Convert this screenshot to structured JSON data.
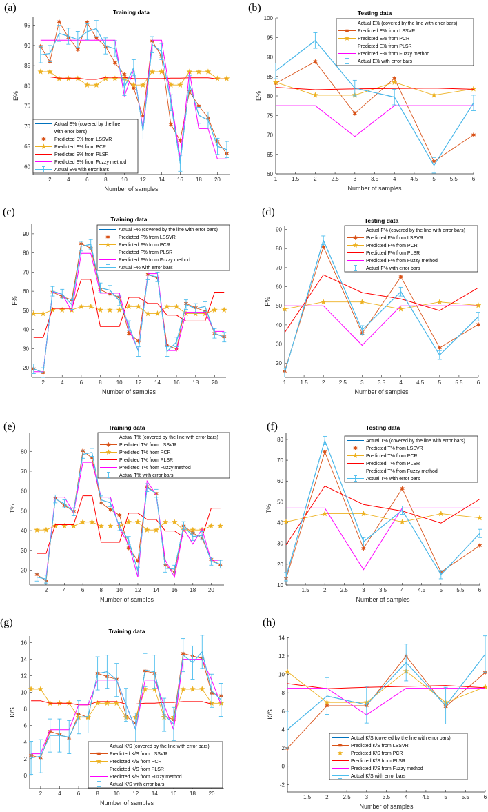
{
  "chart_data": [
    {
      "type": "line",
      "panel_label": "(a)",
      "title": "Training data",
      "xlabel": "Number of samples",
      "ylabel": "E%",
      "xlim": [
        0.2,
        21.3
      ],
      "ylim": [
        58,
        97
      ],
      "xticks": [
        2,
        4,
        6,
        8,
        10,
        12,
        14,
        16,
        18,
        20
      ],
      "yticks": [
        60,
        65,
        70,
        75,
        80,
        85,
        90,
        95
      ],
      "legend_position": "bottom-left",
      "legend": [
        [
          "Actual E% (covered by the line",
          "with error bars)"
        ],
        [
          "Predicted E% from LSSVR"
        ],
        [
          "Predicted E% from PCR"
        ],
        [
          "Predicted E% from PLSR"
        ],
        [
          "Predicted E% from Fuzzy method"
        ],
        [
          "Actual E% with error bars"
        ]
      ],
      "x": [
        1,
        2,
        3,
        4,
        5,
        6,
        7,
        8,
        9,
        10,
        11,
        12,
        13,
        14,
        15,
        16,
        17,
        18,
        19,
        20,
        21
      ],
      "actual": [
        87.7,
        88,
        93,
        92.3,
        91.5,
        93.4,
        94.2,
        89.9,
        89.2,
        79.6,
        84.5,
        68.8,
        90.2,
        88.5,
        75.8,
        60.8,
        80.5,
        72.7,
        71.5,
        65,
        64.2
      ],
      "error": 2,
      "lssvr": [
        89.8,
        86,
        95.9,
        92,
        89,
        95.7,
        91.8,
        89.7,
        85.7,
        82.8,
        79.4,
        72.5,
        91.1,
        87.3,
        70.4,
        66.4,
        78.6,
        75,
        72.1,
        66.2,
        63.2
      ],
      "pcr": [
        83.5,
        83.5,
        81.8,
        81.8,
        81.8,
        80.2,
        80.2,
        81.8,
        81.8,
        81.8,
        80.2,
        80.2,
        83.5,
        83.5,
        80.2,
        80.2,
        83.5,
        83.5,
        83.5,
        81.8,
        81.8
      ],
      "plsr": [
        82.2,
        82.2,
        81.9,
        81.9,
        81.9,
        81.6,
        81.6,
        82.1,
        82.1,
        82.1,
        81.8,
        81.8,
        81.8,
        81.8,
        81.9,
        81.9,
        82,
        82,
        82,
        81.7,
        81.7
      ],
      "fuzzy": [
        91.3,
        91.3,
        91.3,
        91.3,
        91.3,
        91.3,
        91.3,
        91.3,
        91.3,
        77.4,
        84,
        69.5,
        91.3,
        91.3,
        77,
        62,
        83.5,
        69.4,
        69.4,
        61.9,
        61.9
      ]
    },
    {
      "type": "line",
      "panel_label": "(b)",
      "title": "Testing data",
      "xlabel": "Number of samples",
      "ylabel": "E%",
      "xlim": [
        1,
        6
      ],
      "ylim": [
        60,
        100
      ],
      "xticks": [
        1,
        1.5,
        2,
        2.5,
        3,
        3.5,
        4,
        4.5,
        5,
        5.5,
        6
      ],
      "yticks": [
        60,
        65,
        70,
        75,
        80,
        85,
        90,
        95,
        100
      ],
      "legend_position": "top-right",
      "legend": [
        [
          "Actual E% (covered by the line with error bars)"
        ],
        [
          "Predicted E% from LSSVR"
        ],
        [
          "Predicted E% from PCR"
        ],
        [
          "Predicted E% from PLSR"
        ],
        [
          "Predicted E% from Fuzzy method"
        ],
        [
          "Actual E% with error bars"
        ]
      ],
      "x": [
        1,
        2,
        3,
        4,
        5,
        6
      ],
      "actual": [
        86.4,
        94.2,
        82,
        79.7,
        62.2,
        78.2
      ],
      "error": 2,
      "lssvr": [
        83.2,
        88.8,
        75.5,
        84.5,
        63.2,
        70
      ],
      "pcr": [
        83.5,
        80.2,
        80.2,
        83.5,
        80.2,
        81.8
      ],
      "plsr": [
        82.2,
        81.6,
        81.8,
        81.9,
        82,
        81.7
      ],
      "fuzzy": [
        77.5,
        77.5,
        69.6,
        77.5,
        77.5,
        77.5
      ]
    },
    {
      "type": "line",
      "panel_label": "(c)",
      "title": "Training data",
      "xlabel": "Number of samples",
      "ylabel": "F%",
      "xlim": [
        0.8,
        21.2
      ],
      "ylim": [
        15,
        95
      ],
      "xticks": [
        2,
        4,
        6,
        8,
        10,
        12,
        14,
        16,
        18,
        20
      ],
      "yticks": [
        20,
        30,
        40,
        50,
        60,
        70,
        80,
        90
      ],
      "legend_position": "top-right",
      "legend": [
        [
          "Actual F% (covered by the line with error bars)"
        ],
        [
          "Predicted F% from LSSVR"
        ],
        [
          "Predicted F% from PCR"
        ],
        [
          "Predicted F% from PLSR"
        ],
        [
          "Predicted F% from Fuzzy method"
        ],
        [
          "Actual F% with error bars"
        ]
      ],
      "x": [
        1,
        2,
        3,
        4,
        5,
        6,
        7,
        8,
        9,
        10,
        11,
        12,
        13,
        14,
        15,
        16,
        17,
        18,
        19,
        20,
        21
      ],
      "actual": [
        19.5,
        17.5,
        60,
        58.5,
        53,
        83.5,
        84.5,
        61.8,
        60.5,
        55,
        42,
        28.5,
        68.5,
        67.5,
        28.5,
        33.5,
        53,
        51,
        52,
        38,
        36
      ],
      "error": 2.5,
      "lssvr": [
        19.5,
        17.5,
        59.5,
        57.2,
        55.5,
        84.8,
        82.5,
        60.8,
        58.5,
        57,
        38,
        34,
        68.8,
        66.8,
        32,
        29.7,
        53.6,
        51.4,
        49.6,
        38,
        36.2
      ],
      "pcr": [
        48.3,
        48.3,
        50.2,
        50.2,
        50.2,
        52,
        52,
        50.2,
        50.2,
        50.2,
        52,
        52,
        48.3,
        48.3,
        52,
        52,
        48.3,
        48.3,
        48.3,
        50.2,
        50.2
      ],
      "plsr": [
        35.8,
        35.8,
        51,
        51,
        51,
        66.2,
        66.2,
        41.6,
        41.6,
        41.6,
        56.8,
        56.8,
        53.6,
        53.6,
        47.5,
        47.5,
        44.4,
        44.4,
        44.4,
        59.5,
        59.5
      ],
      "fuzzy": [
        18,
        18,
        59.5,
        58.5,
        49.5,
        79.8,
        79.8,
        59,
        59,
        59,
        40,
        29,
        69.2,
        69.2,
        29,
        29,
        49,
        49,
        49,
        39,
        39
      ]
    },
    {
      "type": "line",
      "panel_label": "(d)",
      "title": "Testing data",
      "xlabel": "Number of samples",
      "ylabel": "F%",
      "xlim": [
        1,
        6
      ],
      "ylim": [
        12.5,
        92
      ],
      "xticks": [
        1,
        1.5,
        2,
        2.5,
        3,
        3.5,
        4,
        4.5,
        5,
        5.5,
        6
      ],
      "yticks": [
        20,
        30,
        40,
        50,
        60,
        70,
        80,
        90
      ],
      "legend_position": "top-right",
      "legend": [
        [
          "Actual F% (covered by the line with error bars)"
        ],
        [
          "Predicted F% from LSSVR"
        ],
        [
          "Predicted F% from PCR"
        ],
        [
          "Predicted F% from PLSR"
        ],
        [
          "Predicted F% from Fuzzy method"
        ],
        [
          "Actual F% with error bars"
        ]
      ],
      "x": [
        1,
        2,
        3,
        4,
        5,
        6
      ],
      "actual": [
        15,
        84.3,
        37.3,
        57.4,
        24.2,
        44.3
      ],
      "error": 2.3,
      "lssvr": [
        15.8,
        80.8,
        35.6,
        65.2,
        28,
        40.2
      ],
      "pcr": [
        48.3,
        52,
        52,
        48.3,
        52,
        50.2
      ],
      "plsr": [
        36,
        66.2,
        56.9,
        53.6,
        47.5,
        59.5
      ],
      "fuzzy": [
        50,
        50,
        29.3,
        50,
        50,
        50
      ]
    },
    {
      "type": "line",
      "panel_label": "(e)",
      "title": "Training data",
      "xlabel": "Number of samples",
      "ylabel": "T%",
      "xlim": [
        0.2,
        21.4
      ],
      "ylim": [
        12.5,
        89.5
      ],
      "xticks": [
        2,
        4,
        6,
        8,
        10,
        12,
        14,
        16,
        18,
        20
      ],
      "yticks": [
        20,
        30,
        40,
        50,
        60,
        70,
        80
      ],
      "legend_position": "top-right",
      "legend": [
        [
          "Actual T% (covered by the line with error bars)"
        ],
        [
          "Predicted T% from LSSVR"
        ],
        [
          "Predicted T% from PCR"
        ],
        [
          "Predicted T% from PLSR"
        ],
        [
          "Predicted T% from Fuzzy method"
        ],
        [
          "Actual T% with error bars"
        ]
      ],
      "x": [
        1,
        2,
        3,
        4,
        5,
        6,
        7,
        8,
        9,
        10,
        11,
        12,
        13,
        14,
        15,
        16,
        17,
        18,
        19,
        20,
        21
      ],
      "actual": [
        16.5,
        15.5,
        56,
        53.5,
        49.5,
        78.5,
        79.5,
        55.5,
        54,
        42,
        35,
        19.5,
        61.7,
        58.8,
        21,
        20.5,
        42.5,
        37,
        37.5,
        24.5,
        23
      ],
      "error": 2,
      "lssvr": [
        17.8,
        14.5,
        56.3,
        52.6,
        49.8,
        80.3,
        76.6,
        54,
        50.5,
        47.8,
        31.2,
        24.8,
        62.2,
        58.8,
        22.5,
        19,
        42.3,
        38.8,
        36.2,
        25.4,
        22.7
      ],
      "pcr": [
        40.3,
        40.3,
        42.3,
        42.3,
        42.3,
        44.3,
        44.3,
        42.3,
        42.3,
        42.3,
        44.3,
        44.3,
        40.3,
        40.3,
        44.3,
        44.3,
        40.3,
        40.3,
        40.3,
        42.3,
        42.3
      ],
      "plsr": [
        28.5,
        28.5,
        43,
        43,
        43,
        57.6,
        57.6,
        34.1,
        34.1,
        34.1,
        48.8,
        48.8,
        45.6,
        45.6,
        39.8,
        39.8,
        36.7,
        36.7,
        36.7,
        51.3,
        51.3
      ],
      "fuzzy": [
        16.5,
        16.5,
        56.9,
        56.9,
        49,
        74.5,
        74.5,
        56.9,
        56.9,
        41,
        33,
        16.5,
        65,
        58,
        25,
        16.5,
        41,
        33.2,
        40.8,
        25,
        25
      ]
    },
    {
      "type": "line",
      "panel_label": "(f)",
      "title": "Testing data",
      "xlabel": "Number of samples",
      "ylabel": "T%",
      "xlim": [
        1,
        6
      ],
      "ylim": [
        10,
        83.3
      ],
      "xticks": [
        1.5,
        2,
        2.5,
        3,
        3.5,
        4,
        4.5,
        5,
        5.5,
        6
      ],
      "yticks": [
        10,
        20,
        30,
        40,
        50,
        60,
        70,
        80
      ],
      "legend_position": "top-right",
      "legend": [
        [
          "Actual T% (covered by the line with error bars)"
        ],
        [
          "Predicted T% from LSSVR"
        ],
        [
          "Predicted T% from PCR"
        ],
        [
          "Predicted T% from PLSR"
        ],
        [
          "Predicted T% from Fuzzy method"
        ],
        [
          "Actual T% with error bars"
        ]
      ],
      "x": [
        1,
        2,
        3,
        4,
        5,
        6
      ],
      "actual": [
        14,
        79.5,
        30.8,
        46,
        15,
        34.8
      ],
      "error": 2,
      "lssvr": [
        13,
        74,
        27.6,
        56.4,
        16.2,
        29
      ],
      "pcr": [
        40.3,
        44.3,
        44.3,
        40.3,
        44.3,
        42.3
      ],
      "plsr": [
        29.3,
        57.6,
        48.7,
        45.6,
        39.8,
        51.3
      ],
      "fuzzy": [
        47,
        47,
        17.4,
        47,
        47,
        47
      ]
    },
    {
      "type": "line",
      "panel_label": "(g)",
      "title": "Training data",
      "xlabel": "Number of samples",
      "ylabel": "K/S",
      "xlim": [
        0.85,
        21.3
      ],
      "ylim": [
        -1.6,
        16.8
      ],
      "xticks": [
        2,
        4,
        6,
        8,
        10,
        12,
        14,
        16,
        18,
        20
      ],
      "yticks": [
        0,
        2,
        4,
        6,
        8,
        10,
        12,
        14,
        16
      ],
      "legend_position": "bottom-right",
      "legend": [
        [
          "Actual K/S (covered by the line with error bars)"
        ],
        [
          "Predicted K/S from LSSVR"
        ],
        [
          "Predicted K/S from PCR"
        ],
        [
          "Predicted K/S from PLSR"
        ],
        [
          "Predicted K/S from Fuzzy method"
        ],
        [
          "Actual K/S with error bars"
        ]
      ],
      "x": [
        1,
        2,
        3,
        4,
        5,
        6,
        7,
        8,
        9,
        10,
        11,
        12,
        13,
        14,
        15,
        16,
        17,
        18,
        19,
        20,
        21
      ],
      "actual": [
        2.1,
        2.3,
        4.8,
        4.8,
        4.6,
        7,
        7.1,
        12.3,
        12.5,
        11.5,
        8.5,
        5.5,
        12.7,
        12.5,
        7.3,
        6.2,
        14.5,
        13.6,
        14.9,
        10.2,
        9.1
      ],
      "error": 2,
      "lssvr": [
        2.4,
        2.1,
        5.3,
        4.9,
        4.5,
        7.4,
        7,
        12.3,
        11.9,
        11.6,
        7.1,
        6.3,
        12.6,
        12.3,
        7.2,
        6.7,
        14.7,
        14.4,
        14.1,
        9.9,
        9.6
      ],
      "pcr": [
        10.4,
        10.4,
        8.7,
        8.7,
        8.7,
        7,
        7,
        8.7,
        8.7,
        8.7,
        7,
        7,
        10.4,
        10.4,
        7,
        7,
        10.4,
        10.4,
        10.4,
        8.7,
        8.7
      ],
      "plsr": [
        9,
        9,
        8.7,
        8.7,
        8.7,
        8.5,
        8.5,
        8.9,
        8.9,
        8.9,
        8.6,
        8.6,
        8.7,
        8.7,
        8.8,
        8.8,
        8.9,
        8.9,
        8.9,
        8.6,
        8.6
      ],
      "fuzzy": [
        2.6,
        2.6,
        5.5,
        5.5,
        5.5,
        8.5,
        8.5,
        11.5,
        11.5,
        11.5,
        8.5,
        5.5,
        11.5,
        11.5,
        8.5,
        5.5,
        14,
        14,
        14,
        11.5,
        8.5
      ]
    },
    {
      "type": "line",
      "panel_label": "(h)",
      "title": "",
      "xlabel": "Number of samples",
      "ylabel": "K/S",
      "xlim": [
        1,
        6
      ],
      "ylim": [
        -2.8,
        14.1
      ],
      "xticks": [
        1.5,
        2,
        2.5,
        3,
        3.5,
        4,
        4.5,
        5,
        5.5,
        6
      ],
      "yticks": [
        -2,
        0,
        2,
        4,
        6,
        8,
        10,
        12,
        14
      ],
      "legend_position": "bottom-center",
      "legend": [
        [
          "Actual K/S (covered by the line with error bars)"
        ],
        [
          "Predicted K/S from LSSVR"
        ],
        [
          "Predicted K/S from PCR"
        ],
        [
          "Predicted K/S from PLSR"
        ],
        [
          "Predicted K/S from Fuzzy method"
        ],
        [
          "Actual K/S with error bars"
        ]
      ],
      "x": [
        1,
        2,
        3,
        4,
        5,
        6
      ],
      "actual": [
        4,
        7.65,
        6.7,
        11.3,
        6.6,
        12.2
      ],
      "error": 2,
      "lssvr": [
        1.95,
        6.6,
        6.6,
        12,
        6.5,
        10.2
      ],
      "pcr": [
        10.3,
        6.95,
        6.95,
        10.35,
        6.95,
        8.65
      ],
      "plsr": [
        9,
        8.45,
        8.6,
        8.7,
        8.8,
        8.55
      ],
      "fuzzy": [
        8.5,
        8.5,
        5.6,
        8.5,
        8.5,
        8.5
      ]
    }
  ],
  "colors": {
    "actual": "#0072BD",
    "lssvr": "#D95319",
    "pcr": "#EDB120",
    "plsr": "#FF0000",
    "fuzzy": "#FF00FF",
    "errorbar": "#4DBEEE"
  }
}
